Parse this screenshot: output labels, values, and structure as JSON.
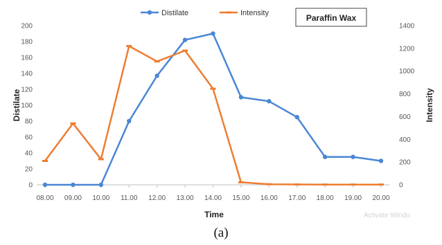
{
  "chart_data": {
    "type": "line",
    "title": "",
    "annotation": "Paraffin Wax",
    "xlabel": "Time",
    "ylabel_left": "Distilate",
    "ylabel_right": "Intensity",
    "categories": [
      "08.00",
      "09.00",
      "10.00",
      "11.00",
      "12.00",
      "13.00",
      "14.00",
      "15.00",
      "16.00",
      "17.00",
      "18.00",
      "19.00",
      "20.00"
    ],
    "left_axis": {
      "min": 0,
      "max": 200,
      "step": 20,
      "ticks": [
        "0",
        "20",
        "40",
        "60",
        "80",
        "100",
        "120",
        "140",
        "160",
        "180",
        "200"
      ]
    },
    "right_axis": {
      "min": 0,
      "max": 1400,
      "step": 200,
      "ticks": [
        "0",
        "200",
        "400",
        "600",
        "800",
        "1000",
        "1200",
        "1400"
      ]
    },
    "series": [
      {
        "name": "Distilate",
        "axis": "left",
        "color": "#4a86d4",
        "marker": "circle",
        "values": [
          0,
          0,
          0,
          80,
          137,
          182,
          190,
          110,
          105,
          85,
          35,
          35,
          30
        ]
      },
      {
        "name": "Intensity",
        "axis": "right",
        "color": "#ed7d31",
        "marker": "dash",
        "values": [
          210,
          540,
          225,
          1220,
          1085,
          1180,
          845,
          22,
          5,
          3,
          2,
          2,
          2
        ]
      }
    ],
    "legend_position": "top-center",
    "grid": false
  },
  "caption": "(a)",
  "watermark": "Activate Windo"
}
